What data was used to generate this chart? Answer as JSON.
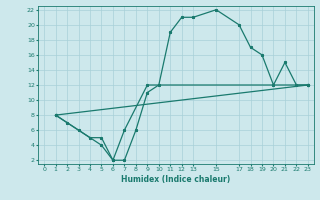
{
  "xlabel": "Humidex (Indice chaleur)",
  "bg_color": "#cde8ec",
  "grid_color": "#a8d0d8",
  "line_color": "#1a7a6e",
  "xlim": [
    -0.5,
    23.5
  ],
  "ylim": [
    1.5,
    22.5
  ],
  "xticks": [
    0,
    1,
    2,
    3,
    4,
    5,
    6,
    7,
    8,
    9,
    10,
    11,
    12,
    13,
    15,
    17,
    18,
    19,
    20,
    21,
    22,
    23
  ],
  "yticks": [
    2,
    4,
    6,
    8,
    10,
    12,
    14,
    16,
    18,
    20,
    22
  ],
  "line1_x": [
    1,
    2,
    3,
    4,
    5,
    6,
    7,
    8,
    9,
    10,
    11,
    12,
    13,
    15,
    17,
    18,
    19,
    20,
    21,
    22,
    23
  ],
  "line1_y": [
    8,
    7,
    6,
    5,
    5,
    2,
    2,
    6,
    11,
    12,
    19,
    21,
    21,
    22,
    20,
    17,
    16,
    12,
    15,
    12,
    12
  ],
  "line2_x": [
    1,
    5,
    6,
    7,
    9,
    23
  ],
  "line2_y": [
    8,
    4,
    2,
    6,
    12,
    12
  ],
  "line3_x": [
    1,
    23
  ],
  "line3_y": [
    8,
    12
  ]
}
